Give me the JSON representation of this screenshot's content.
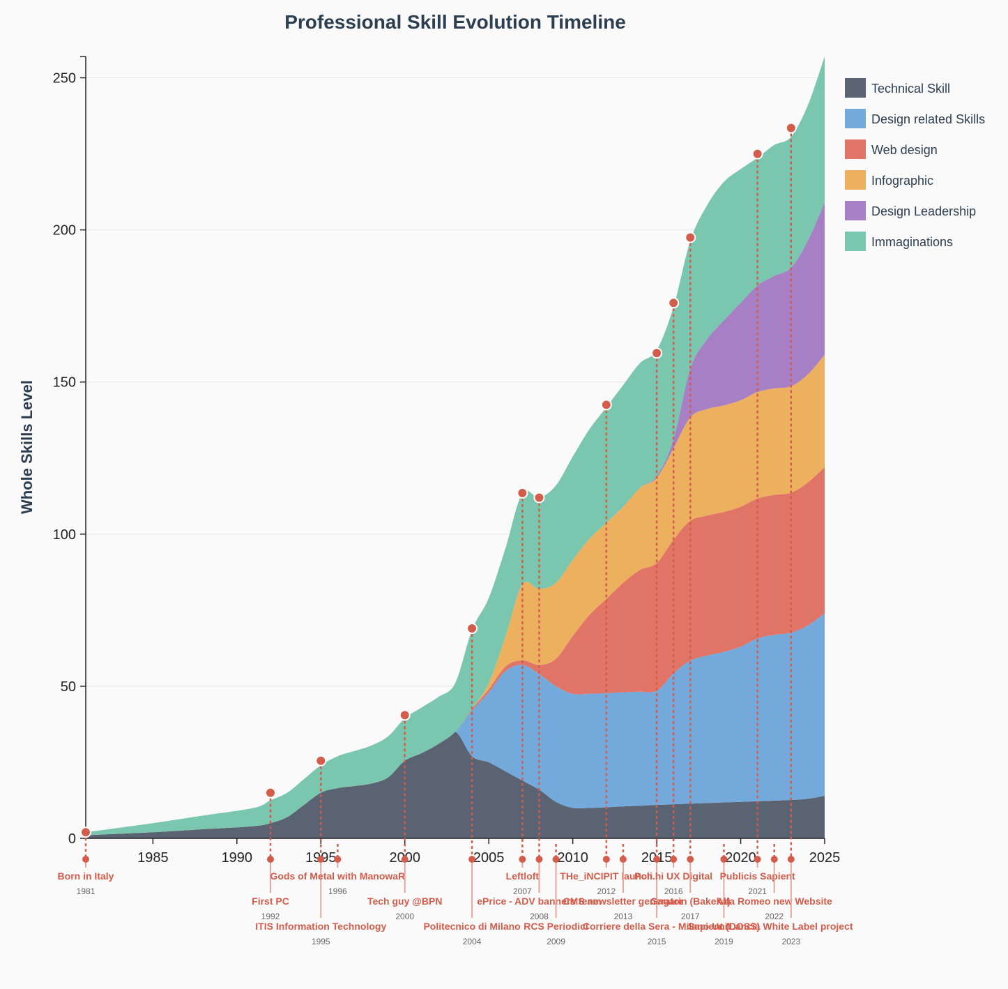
{
  "chart_data": {
    "type": "area",
    "stacked": true,
    "title": "Professional Skill Evolution Timeline",
    "xlabel": "",
    "ylabel": "Whole Skills Level",
    "xlim": [
      1981,
      2025
    ],
    "ylim": [
      0,
      257
    ],
    "xticks": [
      1985,
      1990,
      1995,
      2000,
      2005,
      2010,
      2015,
      2020,
      2025
    ],
    "yticks": [
      0,
      50,
      100,
      150,
      200,
      250
    ],
    "x": [
      1981,
      1985,
      1988,
      1991,
      1992,
      1993,
      1994,
      1995,
      1996,
      1997,
      1998,
      1999,
      2000,
      2001,
      2002,
      2003,
      2004,
      2005,
      2006,
      2007,
      2008,
      2009,
      2010,
      2011,
      2012,
      2013,
      2014,
      2015,
      2016,
      2017,
      2018,
      2019,
      2020,
      2021,
      2022,
      2023,
      2024,
      2025
    ],
    "series": [
      {
        "name": "Technical Skill",
        "color": "#5a6371",
        "values": [
          1,
          2,
          3,
          4,
          5,
          7,
          11,
          15,
          16.5,
          17.2,
          18,
          20,
          25.5,
          28,
          31,
          35,
          27,
          25,
          22,
          19,
          16,
          12,
          10,
          10,
          10.2,
          10.5,
          10.7,
          11,
          11.2,
          11.4,
          11.6,
          11.8,
          12,
          12.2,
          12.4,
          12.6,
          13,
          14
        ]
      },
      {
        "name": "Design related Skills",
        "color": "#74a9dc",
        "values": [
          0,
          0,
          0,
          0,
          0,
          0,
          0,
          0,
          0,
          0,
          0,
          0,
          0,
          0,
          0,
          0,
          15,
          23,
          33,
          38,
          38,
          38,
          37.5,
          37.5,
          37.5,
          37.5,
          37.5,
          37.5,
          43,
          47,
          48.5,
          49.5,
          51,
          53.5,
          54.5,
          55,
          57,
          60
        ]
      },
      {
        "name": "Web design",
        "color": "#e07466",
        "values": [
          0,
          0,
          0,
          0,
          0,
          0,
          0,
          0,
          0,
          0,
          0,
          0,
          0,
          0,
          0,
          0,
          0.5,
          1,
          1.5,
          1.5,
          3,
          9,
          19,
          26,
          31,
          36,
          40,
          42,
          44,
          46,
          46,
          46,
          46,
          46,
          46,
          46,
          47,
          48
        ]
      },
      {
        "name": "Infographic",
        "color": "#edb05e",
        "values": [
          0,
          0,
          0,
          0,
          0,
          0,
          0,
          0,
          0,
          0,
          0,
          0,
          0,
          0,
          0,
          0,
          0,
          2,
          10,
          25,
          25,
          25,
          25,
          25,
          25,
          25,
          27,
          28,
          30,
          34,
          35,
          35,
          35,
          35,
          35,
          35,
          35.5,
          37
        ]
      },
      {
        "name": "Design Leadership",
        "color": "#a77fc5",
        "values": [
          0,
          0,
          0,
          0,
          0,
          0,
          0,
          0,
          0,
          0,
          0,
          0,
          0,
          0,
          0,
          0,
          0,
          0,
          0,
          0,
          0,
          0,
          0,
          0,
          0,
          0,
          0,
          0.5,
          3,
          16,
          23,
          28,
          32,
          35,
          37,
          39,
          44,
          50
        ]
      },
      {
        "name": "Immaginations",
        "color": "#7bc6ae",
        "values": [
          1,
          3,
          4.5,
          6,
          7.5,
          8,
          8.5,
          9,
          10.5,
          11.5,
          12.5,
          13.5,
          14,
          15,
          15.5,
          16,
          26,
          28,
          29,
          30,
          30,
          32,
          34,
          36,
          38,
          40,
          41,
          41.5,
          43.5,
          42,
          44,
          45.5,
          44,
          42,
          43,
          43,
          44.5,
          48
        ]
      }
    ],
    "legend": "top-right",
    "events": [
      {
        "year": 1981,
        "label": "Born in Italy",
        "value": 2,
        "year_label": "1981",
        "tier": 0
      },
      {
        "year": 1992,
        "label": "First PC",
        "value": 15,
        "year_label": "1992",
        "tier": 1
      },
      {
        "year": 1995,
        "label": "ITIS Information Technology",
        "value": 25.5,
        "year_label": "1995",
        "tier": 2
      },
      {
        "year": 1996,
        "label": "Gods of Metal with ManowaR",
        "value": null,
        "year_label": "1996",
        "tier": 0
      },
      {
        "year": 2000,
        "label": "Tech guy @BPN",
        "value": 40.5,
        "year_label": "2000",
        "tier": 1
      },
      {
        "year": 2004,
        "label": "Politecnico di Milano",
        "value": 69,
        "year_label": "2004",
        "tier": 2
      },
      {
        "year": 2007,
        "label": "Leftloft",
        "value": 113.5,
        "year_label": "2007",
        "tier": 0
      },
      {
        "year": 2008,
        "label": "ePrice - ADV banners team",
        "value": 112,
        "year_label": "2008",
        "tier": 1
      },
      {
        "year": 2009,
        "label": "RCS Periodici",
        "value": null,
        "year_label": "2009",
        "tier": 2
      },
      {
        "year": 2012,
        "label": "THe_iNCIPIT launch",
        "value": 142.5,
        "year_label": "2012",
        "tier": 0
      },
      {
        "year": 2013,
        "label": "CMS newsletter generator",
        "value": null,
        "year_label": "2013",
        "tier": 1
      },
      {
        "year": 2015,
        "label": "Corriere della Sera - Milano Unit",
        "value": 159.5,
        "year_label": "2015",
        "tier": 2
      },
      {
        "year": 2016,
        "label": "Poli.hi UX Digital",
        "value": 176,
        "year_label": "2016",
        "tier": 0
      },
      {
        "year": 2017,
        "label": "Gagarin (Bakeka)",
        "value": 197.5,
        "year_label": "2017",
        "tier": 1
      },
      {
        "year": 2019,
        "label": "Sapient (DOSS)",
        "value": null,
        "year_label": "2019",
        "tier": 2
      },
      {
        "year": 2021,
        "label": "Publicis Sapient",
        "value": 225,
        "year_label": "2021",
        "tier": 0
      },
      {
        "year": 2022,
        "label": "Alfa Romeo new Website",
        "value": null,
        "year_label": "2022",
        "tier": 1
      },
      {
        "year": 2023,
        "label": "Lancia White Label project",
        "value": 233.5,
        "year_label": "2023",
        "tier": 2
      }
    ]
  }
}
